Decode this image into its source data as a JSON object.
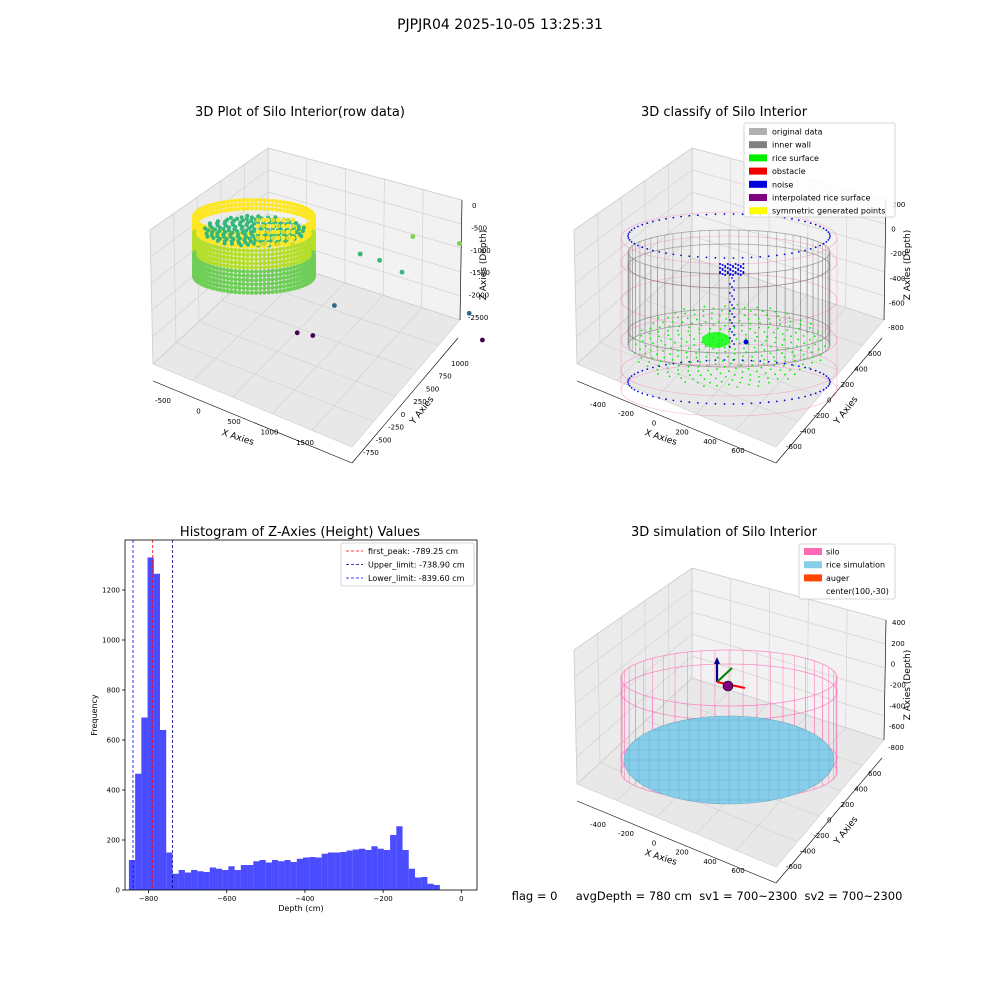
{
  "figure": {
    "suptitle": "PJPJR04 2025-10-05 13:25:31",
    "status_text": "flag = 0     avgDepth = 780 cm  sv1 = 700~2300  sv2 = 700~2300"
  },
  "chart_data": [
    {
      "type": "scatter",
      "title": "3D Plot of Silo Interior(row data)",
      "xlabel": "X Axies",
      "ylabel": "Y Axies",
      "zlabel": "Z Axies (Depth)",
      "x_ticks": [
        "-500",
        "0",
        "500",
        "1000",
        "1500"
      ],
      "y_ticks": [
        "-750",
        "-500",
        "-250",
        "0",
        "250",
        "500",
        "750",
        "1000"
      ],
      "z_ticks": [
        "0",
        "-500",
        "-1000",
        "-1500",
        "-2000",
        "-2500"
      ],
      "outliers": [
        {
          "x": 1300,
          "y": 600,
          "z": -1000
        },
        {
          "x": 1650,
          "y": 200,
          "z": -1000
        },
        {
          "x": 950,
          "y": 700,
          "z": -1350
        },
        {
          "x": 1100,
          "y": 500,
          "z": -1400
        },
        {
          "x": 1250,
          "y": 450,
          "z": -1600
        },
        {
          "x": 900,
          "y": -200,
          "z": -2000
        },
        {
          "x": 1700,
          "y": 300,
          "z": -2300
        },
        {
          "x": 700,
          "y": -500,
          "z": -2400
        },
        {
          "x": 800,
          "y": -500,
          "z": -2450
        },
        {
          "x": 1900,
          "y": -600,
          "z": -2500
        }
      ]
    },
    {
      "type": "scatter",
      "title": "3D classify of Silo Interior",
      "xlabel": "X Axies",
      "ylabel": "Y Axies",
      "zlabel": "Z Axies (Depth)",
      "x_ticks": [
        "-400",
        "-200",
        "0",
        "200",
        "400",
        "600"
      ],
      "y_ticks": [
        "-600",
        "-400",
        "-200",
        "0",
        "200",
        "400",
        "600"
      ],
      "z_ticks": [
        "200",
        "0",
        "-200",
        "-400",
        "-600",
        "-800"
      ],
      "legend_position": "top-right",
      "legend": [
        {
          "label": "original data",
          "color": "#b0b0b0"
        },
        {
          "label": "inner wall",
          "color": "#808080"
        },
        {
          "label": "rice surface",
          "color": "#00ee00"
        },
        {
          "label": "obstacle",
          "color": "#ee0000"
        },
        {
          "label": "noise",
          "color": "#0000dd"
        },
        {
          "label": "interpolated rice surface",
          "color": "#800080"
        },
        {
          "label": "symmetric generated points",
          "color": "#ffff00"
        }
      ]
    },
    {
      "type": "bar",
      "title": "Histogram of Z-Axies (Height) Values",
      "xlabel": "Depth (cm)",
      "ylabel": "Frequency",
      "xlim": [
        -860,
        40
      ],
      "ylim": [
        0,
        1400
      ],
      "x_ticks": [
        -800,
        -600,
        -400,
        -200,
        0
      ],
      "y_ticks": [
        0,
        200,
        400,
        600,
        800,
        1000,
        1200
      ],
      "bin_start": -850,
      "bin_width": 15.9,
      "values": [
        120,
        465,
        690,
        1330,
        1265,
        640,
        150,
        65,
        80,
        70,
        80,
        75,
        72,
        90,
        85,
        80,
        95,
        80,
        100,
        100,
        115,
        120,
        110,
        120,
        115,
        120,
        112,
        125,
        130,
        132,
        130,
        145,
        150,
        150,
        152,
        158,
        162,
        165,
        160,
        175,
        165,
        160,
        220,
        255,
        160,
        85,
        50,
        52,
        25,
        20
      ],
      "bar_color": "#0000ff",
      "bar_alpha": 0.7,
      "legend_position": "top-right",
      "vlines": [
        {
          "label": "first_peak: -789.25 cm",
          "x": -789.25,
          "color": "#ff0000"
        },
        {
          "label": "Upper_limit: -738.90 cm",
          "x": -738.9,
          "color": "#00008b"
        },
        {
          "label": "Lower_limit: -839.60 cm",
          "x": -839.6,
          "color": "#0000ff"
        }
      ]
    },
    {
      "type": "scatter",
      "title": "3D simulation of Silo Interior",
      "xlabel": "X Axies",
      "ylabel": "Y Axies",
      "zlabel": "Z Axies (Depth)",
      "x_ticks": [
        "-400",
        "-200",
        "0",
        "200",
        "400",
        "600"
      ],
      "y_ticks": [
        "-600",
        "-400",
        "-200",
        "0",
        "200",
        "400",
        "600"
      ],
      "z_ticks": [
        "400",
        "200",
        "0",
        "-200",
        "-400",
        "-600",
        "-800"
      ],
      "legend_position": "top-right",
      "legend": [
        {
          "label": "silo",
          "color": "#ff69b4"
        },
        {
          "label": "rice simulation",
          "color": "#87ceeb"
        },
        {
          "label": "auger",
          "color": "#ff4500"
        },
        {
          "label": "center(100,-30)",
          "color": ""
        }
      ]
    }
  ]
}
